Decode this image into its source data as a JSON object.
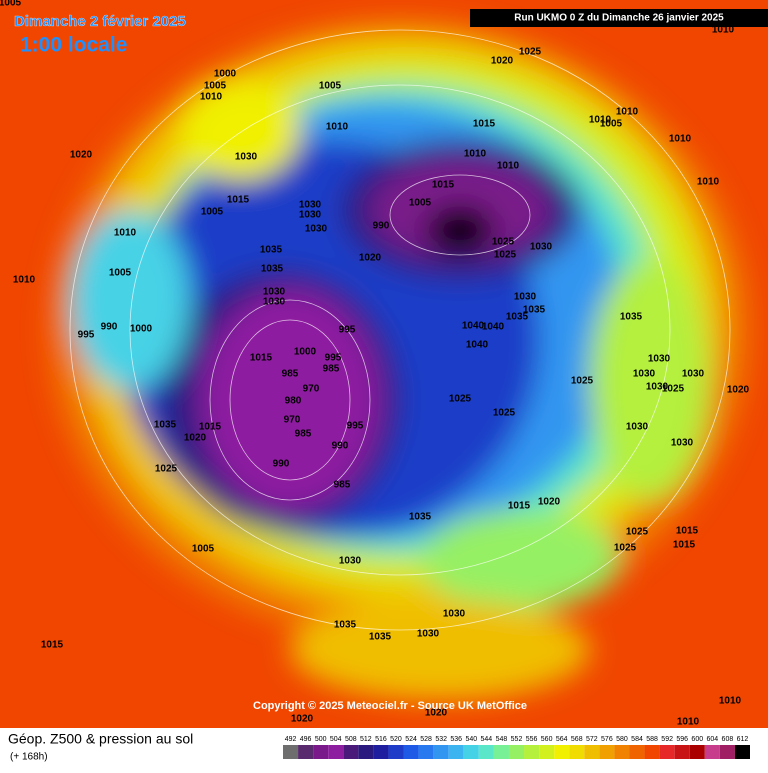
{
  "header": {
    "date": "Dimanche 2 février 2025",
    "time": "1:00 locale",
    "run": "Run UKMO 0 Z du Dimanche 26 janvier 2025"
  },
  "copyright": "Copyright © 2025 Meteociel.fr - Source UK MetOffice",
  "footer": {
    "title": "Géop. Z500 & pression au sol",
    "lead": "(+ 168h)"
  },
  "scale": {
    "labels": [
      492,
      496,
      500,
      504,
      508,
      512,
      516,
      520,
      524,
      528,
      532,
      536,
      540,
      544,
      548,
      552,
      556,
      560,
      564,
      568,
      572,
      576,
      580,
      584,
      588,
      592,
      596,
      600,
      604,
      608,
      612
    ],
    "colors": [
      "#6e6e6e",
      "#5a2a6e",
      "#7a1a8a",
      "#8e1ea0",
      "#4a1a7a",
      "#2a1a80",
      "#1e1e9e",
      "#1e3cc8",
      "#1e5ae6",
      "#2878f0",
      "#3296f0",
      "#3cb4f0",
      "#46d2e6",
      "#5ae6c8",
      "#78f096",
      "#96f064",
      "#b4f03c",
      "#d2f01e",
      "#f0f000",
      "#f0dc00",
      "#f0be00",
      "#f0a000",
      "#f08200",
      "#f06400",
      "#f04600",
      "#e62828",
      "#c81414",
      "#aa0000",
      "#c83c8c",
      "#a01e64",
      "#000000"
    ]
  },
  "isobar_labels": [
    "1005",
    "1000",
    "1005",
    "1010",
    "1020",
    "1030",
    "1005",
    "1015",
    "1010",
    "1005",
    "1010",
    "995",
    "990",
    "1000",
    "1035",
    "1035",
    "1030",
    "1030",
    "1030",
    "1030",
    "1030",
    "1020",
    "1005",
    "1010",
    "1015",
    "1010",
    "1010",
    "1015",
    "1005",
    "990",
    "1025",
    "1025",
    "1030",
    "1030",
    "1035",
    "1035",
    "1040",
    "1040",
    "1040",
    "995",
    "1000",
    "995",
    "985",
    "985",
    "970",
    "980",
    "970",
    "985",
    "990",
    "995",
    "985",
    "990",
    "1015",
    "1015",
    "1020",
    "1025",
    "1035",
    "1005",
    "1030",
    "1035",
    "1015",
    "1020",
    "1025",
    "1025",
    "1025",
    "1035",
    "1030",
    "1030",
    "1030",
    "1025",
    "1030",
    "1020",
    "1030",
    "1030",
    "1025",
    "1025",
    "1015",
    "1015",
    "1035",
    "1035",
    "1030",
    "1030",
    "1015",
    "1020",
    "1020",
    "1010",
    "1010",
    "1010",
    "1025",
    "1020",
    "1010",
    "1010",
    "1010",
    "1010",
    "1005"
  ]
}
